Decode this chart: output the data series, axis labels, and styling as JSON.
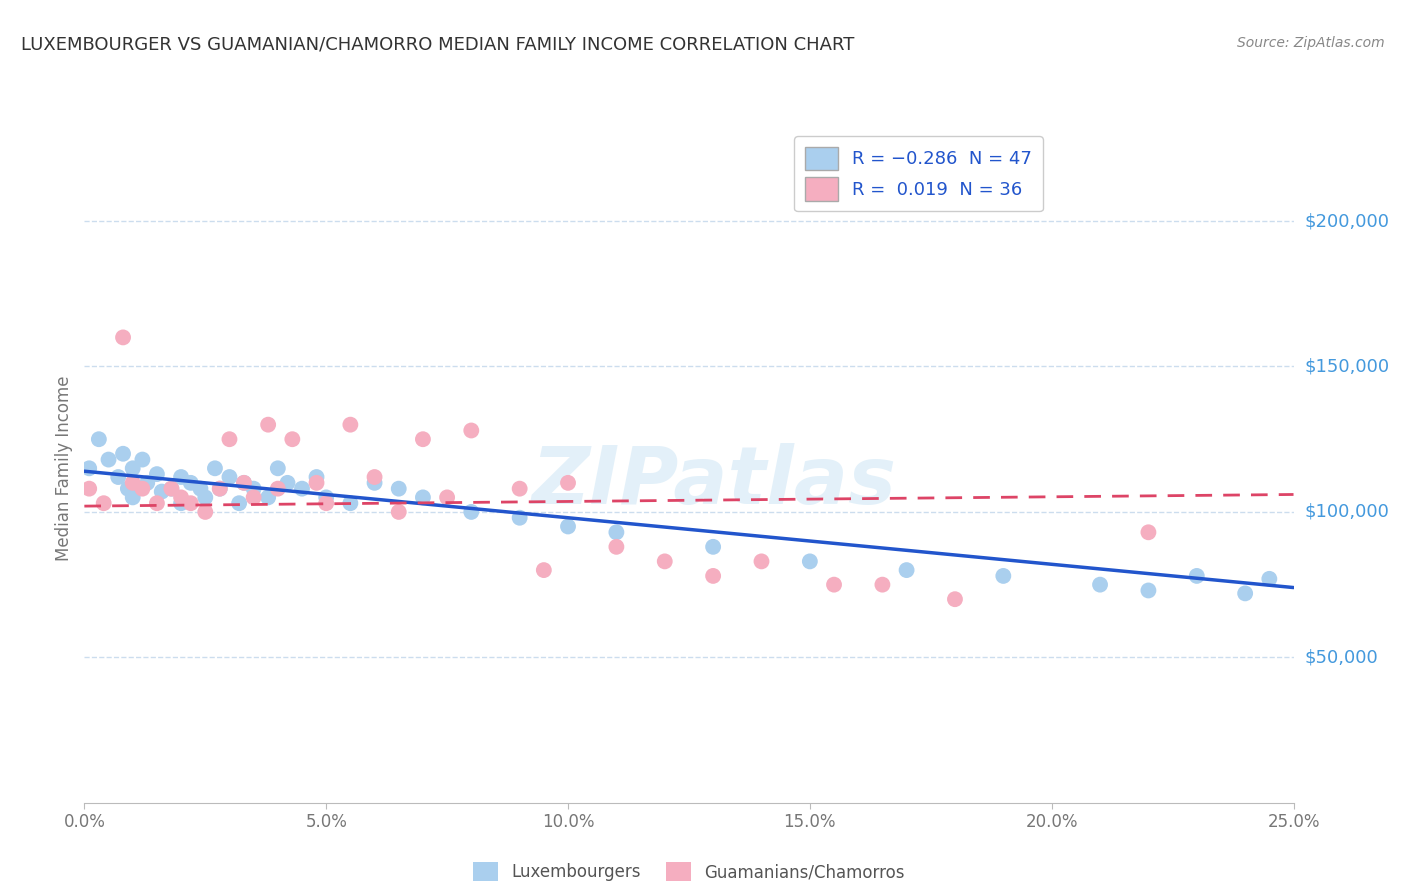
{
  "title": "LUXEMBOURGER VS GUAMANIAN/CHAMORRO MEDIAN FAMILY INCOME CORRELATION CHART",
  "source_text": "Source: ZipAtlas.com",
  "ylabel": "Median Family Income",
  "watermark": "ZIPatlas",
  "xlim": [
    0.0,
    0.25
  ],
  "ylim": [
    0,
    230000
  ],
  "yticks": [
    50000,
    100000,
    150000,
    200000
  ],
  "ytick_labels": [
    "$50,000",
    "$100,000",
    "$150,000",
    "$200,000"
  ],
  "xticks": [
    0.0,
    0.05,
    0.1,
    0.15,
    0.2,
    0.25
  ],
  "xtick_labels": [
    "0.0%",
    "5.0%",
    "10.0%",
    "15.0%",
    "20.0%",
    "25.0%"
  ],
  "blue_dot_color": "#aacfee",
  "pink_dot_color": "#f5aec0",
  "line_blue": "#2255cc",
  "line_pink": "#dd4466",
  "axis_color": "#4499dd",
  "grid_color": "#ccddee",
  "title_color": "#333333",
  "source_color": "#888888",
  "ylabel_color": "#777777",
  "legend_label_color": "#2255cc",
  "bottom_legend_color": "#555555",
  "lux_x": [
    0.001,
    0.003,
    0.005,
    0.007,
    0.008,
    0.009,
    0.01,
    0.01,
    0.012,
    0.013,
    0.015,
    0.016,
    0.018,
    0.02,
    0.02,
    0.022,
    0.024,
    0.025,
    0.027,
    0.028,
    0.03,
    0.032,
    0.033,
    0.035,
    0.038,
    0.04,
    0.042,
    0.045,
    0.048,
    0.05,
    0.055,
    0.06,
    0.065,
    0.07,
    0.08,
    0.09,
    0.1,
    0.11,
    0.13,
    0.15,
    0.17,
    0.19,
    0.21,
    0.22,
    0.23,
    0.24,
    0.245
  ],
  "lux_y": [
    115000,
    125000,
    118000,
    112000,
    120000,
    108000,
    115000,
    105000,
    118000,
    110000,
    113000,
    107000,
    108000,
    112000,
    103000,
    110000,
    108000,
    105000,
    115000,
    108000,
    112000,
    103000,
    110000,
    108000,
    105000,
    115000,
    110000,
    108000,
    112000,
    105000,
    103000,
    110000,
    108000,
    105000,
    100000,
    98000,
    95000,
    93000,
    88000,
    83000,
    80000,
    78000,
    75000,
    73000,
    78000,
    72000,
    77000
  ],
  "guam_x": [
    0.001,
    0.004,
    0.008,
    0.01,
    0.012,
    0.015,
    0.018,
    0.02,
    0.022,
    0.025,
    0.028,
    0.03,
    0.033,
    0.035,
    0.038,
    0.04,
    0.043,
    0.048,
    0.05,
    0.055,
    0.06,
    0.065,
    0.07,
    0.075,
    0.08,
    0.09,
    0.095,
    0.1,
    0.11,
    0.12,
    0.13,
    0.14,
    0.155,
    0.165,
    0.18,
    0.22
  ],
  "guam_y": [
    108000,
    103000,
    160000,
    110000,
    108000,
    103000,
    108000,
    105000,
    103000,
    100000,
    108000,
    125000,
    110000,
    105000,
    130000,
    108000,
    125000,
    110000,
    103000,
    130000,
    112000,
    100000,
    125000,
    105000,
    128000,
    108000,
    80000,
    110000,
    88000,
    83000,
    78000,
    83000,
    75000,
    75000,
    70000,
    93000
  ],
  "blue_trend_x": [
    0.0,
    0.25
  ],
  "blue_trend_y": [
    114000,
    74000
  ],
  "pink_trend_x": [
    0.0,
    0.25
  ],
  "pink_trend_y": [
    102000,
    106000
  ]
}
